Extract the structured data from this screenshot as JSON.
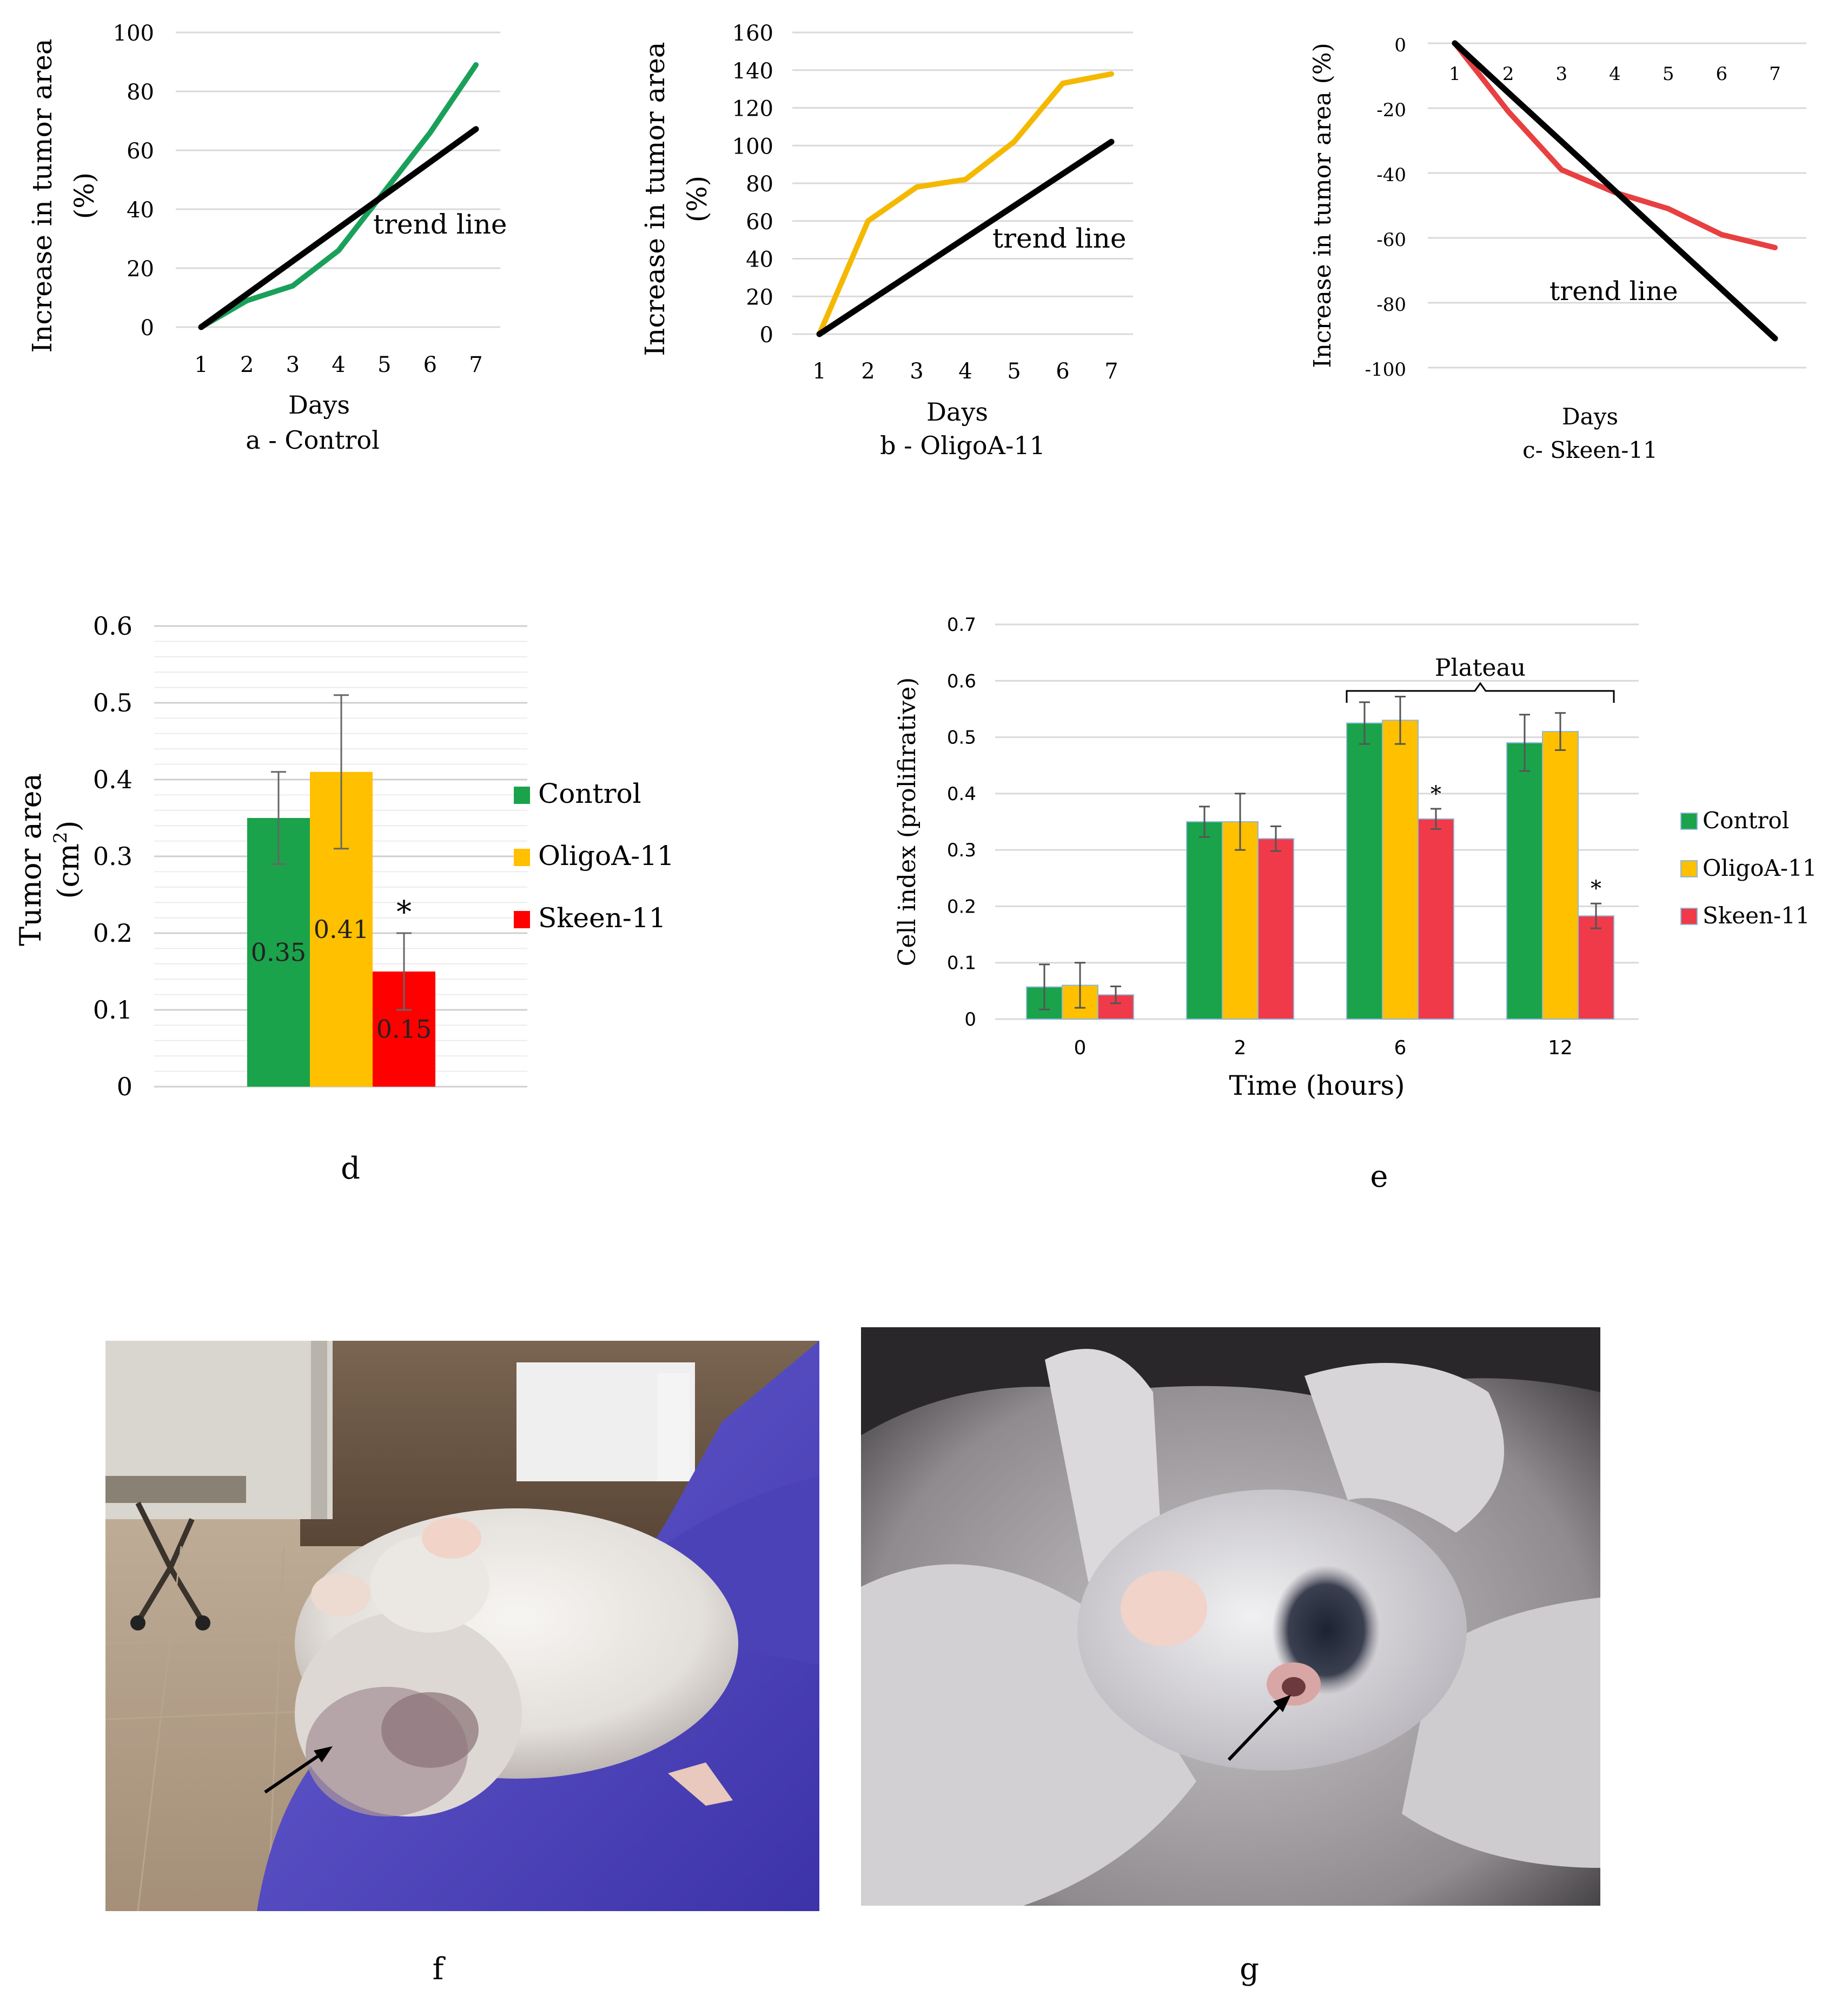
{
  "chart_data": [
    {
      "id": "a",
      "type": "line",
      "title": "a - Control",
      "xlabel": "Days",
      "ylabel": "Increase in tumor area (%)",
      "ylabel_lines": [
        "Increase in tumor area",
        "(%)"
      ],
      "x": [
        1,
        2,
        3,
        4,
        5,
        6,
        7
      ],
      "xticks": [
        "1",
        "2",
        "3",
        "4",
        "5",
        "6",
        "7"
      ],
      "ylim": [
        0,
        100
      ],
      "yticks": [
        "0",
        "20",
        "40",
        "60",
        "80",
        "100"
      ],
      "series": [
        {
          "name": "Control",
          "color": "#1aa05a",
          "values": [
            0,
            9,
            14,
            26,
            46,
            66,
            89
          ]
        },
        {
          "name": "trend line",
          "color": "#000000",
          "values": [
            0,
            11.2,
            22.4,
            33.6,
            44.8,
            56,
            67.2
          ]
        }
      ],
      "annotation": "trend line",
      "grid": true
    },
    {
      "id": "b",
      "type": "line",
      "title": "b - OligoA-11",
      "xlabel": "Days",
      "ylabel": "Increase in tumor area (%)",
      "ylabel_lines": [
        "Increase in tumor area",
        "(%)"
      ],
      "x": [
        1,
        2,
        3,
        4,
        5,
        6,
        7
      ],
      "xticks": [
        "1",
        "2",
        "3",
        "4",
        "5",
        "6",
        "7"
      ],
      "ylim": [
        0,
        160
      ],
      "yticks": [
        "0",
        "20",
        "40",
        "60",
        "80",
        "100",
        "120",
        "140",
        "160"
      ],
      "series": [
        {
          "name": "OligoA-11",
          "color": "#f5b800",
          "values": [
            0,
            60,
            78,
            82,
            102,
            133,
            138
          ]
        },
        {
          "name": "trend line",
          "color": "#000000",
          "values": [
            0,
            17,
            34,
            51,
            68,
            85,
            102
          ]
        }
      ],
      "annotation": "trend line",
      "grid": true
    },
    {
      "id": "c",
      "type": "line",
      "title": "c- Skeen-11",
      "xlabel": "Days",
      "ylabel": "Increase in tumor area (%)",
      "ylabel_lines": [
        "Increase in tumor area (%)"
      ],
      "x": [
        1,
        2,
        3,
        4,
        5,
        6,
        7
      ],
      "xticks": [
        "1",
        "2",
        "3",
        "4",
        "5",
        "6",
        "7"
      ],
      "ylim": [
        -100,
        0
      ],
      "yticks": [
        "0",
        "-20",
        "-40",
        "-60",
        "-80",
        "-100"
      ],
      "series": [
        {
          "name": "Skeen-11",
          "color": "#e84040",
          "values": [
            0,
            -21,
            -39,
            -46,
            -51,
            -59,
            -63
          ]
        },
        {
          "name": "trend line",
          "color": "#000000",
          "values": [
            0,
            -15.2,
            -30.3,
            -45.5,
            -60.7,
            -75.8,
            -91
          ]
        }
      ],
      "annotation": "trend line",
      "grid": true
    },
    {
      "id": "d",
      "type": "bar",
      "title": "d",
      "ylabel": "Tumor area (cm2)",
      "ylabel_lines": [
        "Tumor area",
        "(cm",
        "2",
        ")"
      ],
      "ylim": [
        0,
        0.6
      ],
      "yticks": [
        "0",
        "0.1",
        "0.2",
        "0.3",
        "0.4",
        "0.5",
        "0.6"
      ],
      "series": [
        {
          "name": "Control",
          "color": "#1aa34a",
          "value": 0.35,
          "error": 0.06,
          "label": "0.35",
          "significant": false
        },
        {
          "name": "OligoA-11",
          "color": "#ffc000",
          "value": 0.41,
          "error": 0.1,
          "label": "0.41",
          "significant": false
        },
        {
          "name": "Skeen-11",
          "color": "#ff0000",
          "value": 0.15,
          "error": 0.05,
          "label": "0.15",
          "significant": true
        }
      ],
      "significance_marker": "*",
      "legend_position": "right",
      "grid": true
    },
    {
      "id": "e",
      "type": "bar",
      "title": "e",
      "xlabel": "Time (hours)",
      "ylabel": "Cell index (prolifirative)",
      "categories": [
        "0",
        "2",
        "6",
        "12"
      ],
      "ylim": [
        0,
        0.7
      ],
      "yticks": [
        "0",
        "0.1",
        "0.2",
        "0.3",
        "0.4",
        "0.5",
        "0.6",
        "0.7"
      ],
      "series": [
        {
          "name": "Control",
          "color": "#1aa34a",
          "values": [
            0.057,
            0.35,
            0.525,
            0.49
          ],
          "errors": [
            0.04,
            0.027,
            0.037,
            0.05
          ],
          "significant": [
            false,
            false,
            false,
            false
          ]
        },
        {
          "name": "OligoA-11",
          "color": "#ffc000",
          "values": [
            0.06,
            0.35,
            0.53,
            0.51
          ],
          "errors": [
            0.04,
            0.05,
            0.042,
            0.033
          ],
          "significant": [
            false,
            false,
            false,
            false
          ]
        },
        {
          "name": "Skeen-11",
          "color": "#f03a4a",
          "values": [
            0.043,
            0.32,
            0.355,
            0.183
          ],
          "errors": [
            0.015,
            0.022,
            0.018,
            0.022
          ],
          "significant": [
            false,
            false,
            true,
            true
          ]
        }
      ],
      "significance_marker": "*",
      "bracket_label": "Plateau",
      "legend_position": "right",
      "grid": true
    }
  ],
  "figures": [
    {
      "id": "f",
      "label": "f"
    },
    {
      "id": "g",
      "label": "g"
    }
  ]
}
